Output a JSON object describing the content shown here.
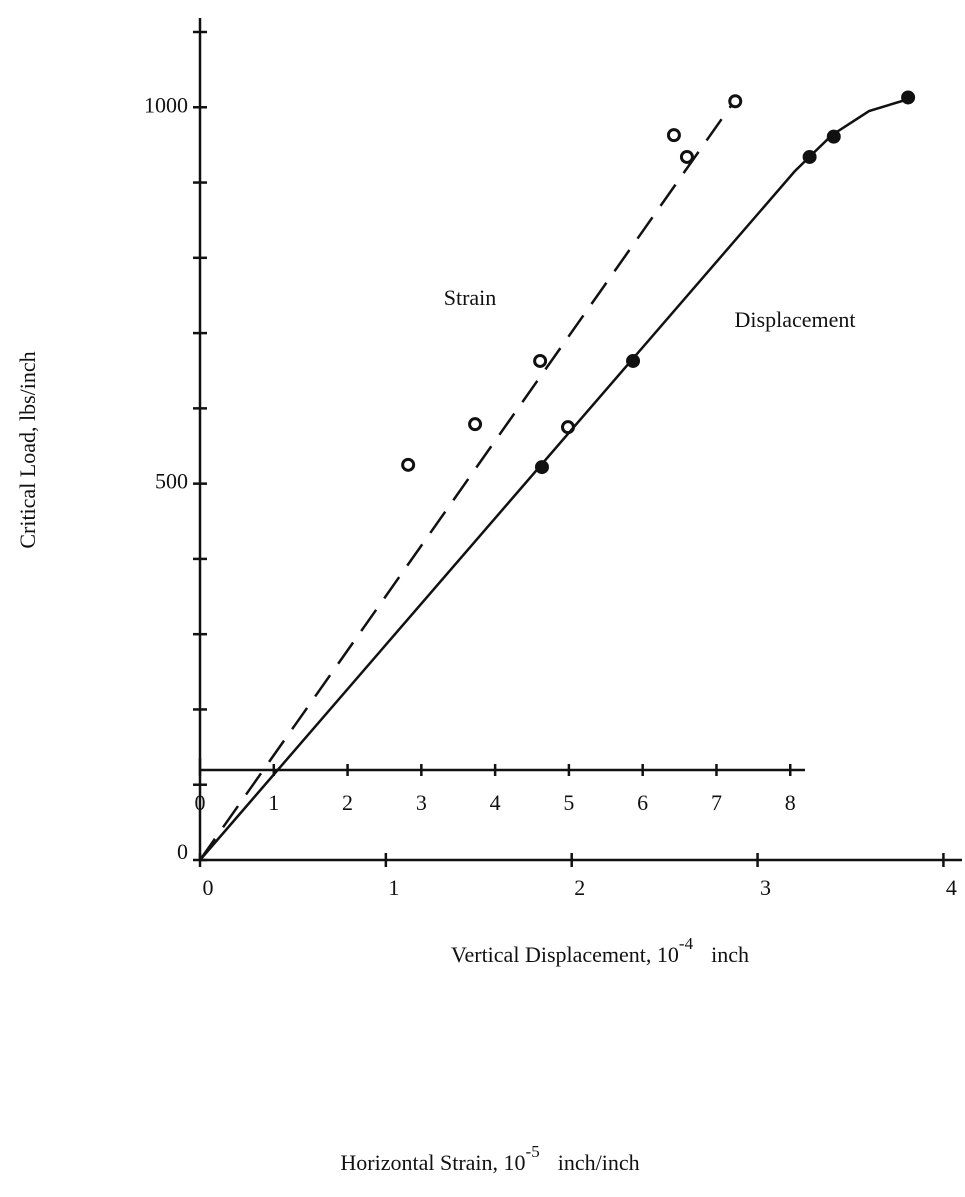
{
  "chart_data": {
    "type": "scatter",
    "ylabel": "Critical Load, lbs/inch",
    "xlabel": {
      "text": "Vertical Displacement, 10",
      "sup": "-4",
      "unit": "inch"
    },
    "x2label": {
      "text": "Horizontal Strain, 10",
      "sup": "-5",
      "unit": "inch/inch"
    },
    "xlim": [
      0,
      4.1
    ],
    "xticks": [
      0,
      1,
      2,
      3,
      4
    ],
    "ylim": [
      0,
      1100
    ],
    "yticks": [
      0,
      100,
      200,
      300,
      400,
      500,
      600,
      700,
      800,
      900,
      1000,
      1100
    ],
    "ytick_labels": {
      "0": "0",
      "5": "500",
      "10": "1000"
    },
    "x2lim": [
      0,
      8.2
    ],
    "x2ticks": [
      0,
      1,
      2,
      3,
      4,
      5,
      6,
      7,
      8
    ],
    "series": [
      {
        "name": "Strain",
        "color": "#111",
        "marker": "open",
        "dash": true,
        "x": [
          1.12,
          1.48,
          1.83,
          1.98,
          2.55,
          2.62,
          2.88
        ],
        "values": [
          525,
          579,
          663,
          575,
          963,
          934,
          1008
        ],
        "curve_x": [
          0,
          2.86
        ],
        "curve_y": [
          0,
          1003
        ]
      },
      {
        "name": "Displacement",
        "color": "#111",
        "marker": "filled",
        "dash": false,
        "x": [
          1.84,
          2.33,
          3.28,
          3.41,
          3.81
        ],
        "values": [
          522,
          663,
          934,
          961,
          1013
        ],
        "curve_x": [
          0,
          3.2,
          3.4,
          3.6,
          3.8
        ],
        "curve_y": [
          0,
          915,
          963,
          995,
          1010
        ]
      }
    ]
  }
}
